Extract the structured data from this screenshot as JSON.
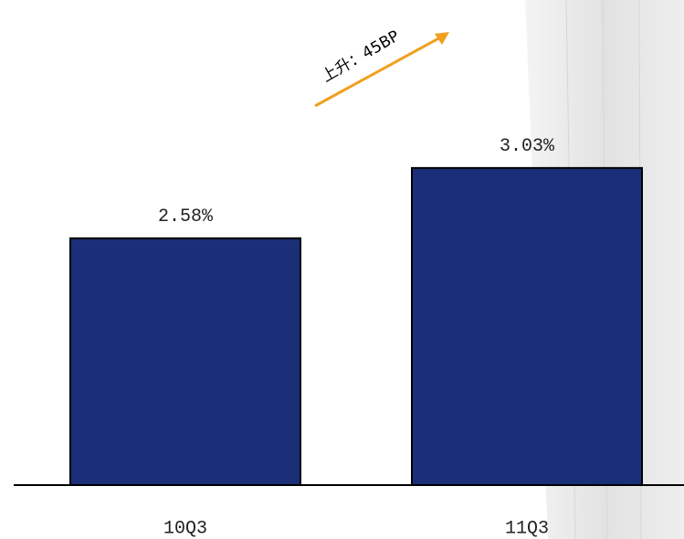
{
  "chart_data": {
    "type": "bar",
    "categories": [
      "10Q3",
      "11Q3"
    ],
    "values": [
      2.58,
      3.03
    ],
    "value_labels": [
      "2.58%",
      "3.03%"
    ],
    "color": "#1a2f78",
    "ylim": [
      1,
      4
    ],
    "annotation": "上升：45BP"
  }
}
